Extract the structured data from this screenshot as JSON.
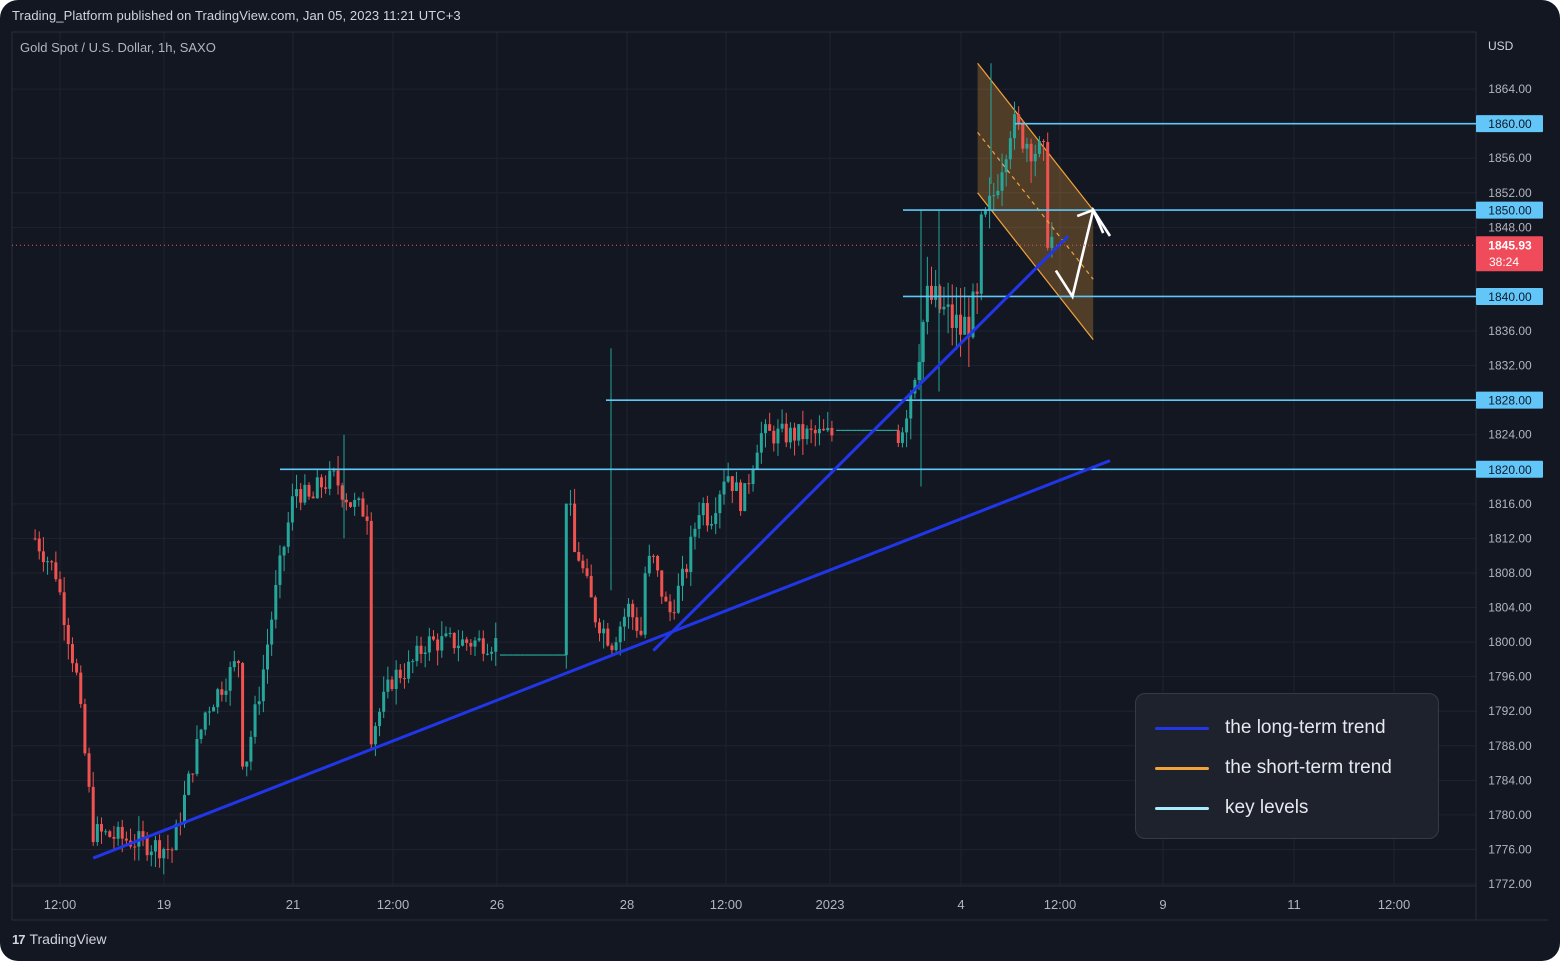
{
  "header": {
    "published": "Trading_Platform published on TradingView.com, Jan 05, 2023 11:21 UTC+3",
    "symbol": "Gold Spot / U.S. Dollar, 1h, SAXO",
    "currency": "USD"
  },
  "footer": {
    "logo_mark": "17",
    "logo_text": "TradingView"
  },
  "colors": {
    "background": "#131722",
    "grid": "#1f2330",
    "up_candle": "#26a69a",
    "down_candle": "#ef5350",
    "long_trend": "#2136e8",
    "short_trend": "#f2a23a",
    "key_level": "#5ec8fa",
    "price_badge": "#ef4b5a",
    "axis_text": "#b2b5be"
  },
  "legend": {
    "items": [
      {
        "label": "the long-term trend",
        "color": "#2136e8"
      },
      {
        "label": "the short-term trend",
        "color": "#f2a23a"
      },
      {
        "label": "key levels",
        "color": "#a8ecff"
      }
    ]
  },
  "chart_data": {
    "type": "candlestick",
    "title": "Gold Spot / U.S. Dollar, 1h, SAXO",
    "ylabel": "USD",
    "ylim": [
      1772,
      1869
    ],
    "y_ticks": [
      "1864.00",
      "1856.00",
      "1852.00",
      "1848.00",
      "1836.00",
      "1832.00",
      "1824.00",
      "1816.00",
      "1812.00",
      "1808.00",
      "1804.00",
      "1800.00",
      "1796.00",
      "1792.00",
      "1788.00",
      "1784.00",
      "1780.00",
      "1776.00",
      "1772.00"
    ],
    "x_ticks": [
      "12:00",
      "19",
      "21",
      "12:00",
      "26",
      "28",
      "12:00",
      "2023",
      "4",
      "12:00",
      "9",
      "11",
      "12:00"
    ],
    "key_levels": [
      1860.0,
      1850.0,
      1840.0,
      1828.0,
      1820.0
    ],
    "key_level_labels": [
      "1860.00",
      "1850.00",
      "1840.00",
      "1828.00",
      "1820.00"
    ],
    "current_price": {
      "value": 1845.93,
      "label": "1845.93",
      "countdown": "38:24"
    },
    "price_path": [
      [
        "Dec 16 06:00",
        1812
      ],
      [
        "Dec 16 11:00",
        1808
      ],
      [
        "Dec 16 16:00",
        1796
      ],
      [
        "Dec 16 20:00",
        1778
      ],
      [
        "Dec 19 02:00",
        1776
      ],
      [
        "Dec 19 06:00",
        1784
      ],
      [
        "Dec 19 10:00",
        1792
      ],
      [
        "Dec 19 14:00",
        1795
      ],
      [
        "Dec 19 18:00",
        1798
      ],
      [
        "Dec 20 00:00",
        1790
      ],
      [
        "Dec 20 04:00",
        1786
      ],
      [
        "Dec 20 08:00",
        1796
      ],
      [
        "Dec 20 12:00",
        1808
      ],
      [
        "Dec 20 16:00",
        1818
      ],
      [
        "Dec 20 20:00",
        1816
      ],
      [
        "Dec 21 02:00",
        1813
      ],
      [
        "Dec 21 06:00",
        1818
      ],
      [
        "Dec 21 10:00",
        1819
      ],
      [
        "Dec 21 14:00",
        1816
      ],
      [
        "Dec 21 18:00",
        1815
      ],
      [
        "Dec 22 00:00",
        1804
      ],
      [
        "Dec 22 04:00",
        1786
      ],
      [
        "Dec 22 08:00",
        1791
      ],
      [
        "Dec 22 12:00",
        1796
      ],
      [
        "Dec 22 16:00",
        1797
      ],
      [
        "Dec 22 20:00",
        1800
      ],
      [
        "Dec 26 01:00",
        1800
      ],
      [
        "Dec 26 06:00",
        1806
      ],
      [
        "Dec 26 10:00",
        1809
      ],
      [
        "Dec 26 14:00",
        1823
      ],
      [
        "Dec 26 18:00",
        1814
      ],
      [
        "Dec 27 00:00",
        1811
      ],
      [
        "Dec 27 04:00",
        1810
      ],
      [
        "Dec 27 08:00",
        1803
      ],
      [
        "Dec 27 12:00",
        1800
      ],
      [
        "Dec 27 16:00",
        1804
      ],
      [
        "Dec 27 20:00",
        1800
      ],
      [
        "Dec 28 02:00",
        1805
      ],
      [
        "Dec 28 06:00",
        1810
      ],
      [
        "Dec 28 10:00",
        1803
      ],
      [
        "Dec 28 14:00",
        1808
      ],
      [
        "Dec 28 18:00",
        1817
      ],
      [
        "Dec 29 00:00",
        1816
      ],
      [
        "Dec 29 04:00",
        1819
      ],
      [
        "Dec 29 08:00",
        1814
      ],
      [
        "Dec 29 12:00",
        1820
      ],
      [
        "Dec 29 16:00",
        1816
      ],
      [
        "Dec 29 20:00",
        1824
      ],
      [
        "Jan 02 00:00",
        1824
      ],
      [
        "Jan 03 01:00",
        1824
      ],
      [
        "Jan 03 04:00",
        1830
      ],
      [
        "Jan 03 08:00",
        1840
      ],
      [
        "Jan 03 12:00",
        1838
      ],
      [
        "Jan 03 16:00",
        1836
      ],
      [
        "Jan 03 20:00",
        1839
      ],
      [
        "Jan 04 00:00",
        1838
      ],
      [
        "Jan 04 04:00",
        1846
      ],
      [
        "Jan 04 08:00",
        1852
      ],
      [
        "Jan 04 12:00",
        1860
      ],
      [
        "Jan 04 16:00",
        1858
      ],
      [
        "Jan 04 20:00",
        1856
      ],
      [
        "Jan 05 00:00",
        1857
      ],
      [
        "Jan 05 04:00",
        1854
      ],
      [
        "Jan 05 08:00",
        1848
      ],
      [
        "Jan 05 11:00",
        1845.93
      ]
    ],
    "annotations": {
      "long_term_trend_lines": [
        {
          "from": [
            "Dec 16 20:00",
            1775
          ],
          "to": [
            "Jan 06 00:00",
            1821
          ]
        },
        {
          "from": [
            "Dec 27 22:00",
            1799
          ],
          "to": [
            "Jan 05 14:00",
            1847
          ]
        }
      ],
      "short_term_channel": {
        "upper": {
          "from": [
            "Jan 04 04:00",
            1867
          ],
          "to": [
            "Jan 05 20:00",
            1850
          ]
        },
        "lower": {
          "from": [
            "Jan 04 04:00",
            1852
          ],
          "to": [
            "Jan 05 20:00",
            1835
          ]
        },
        "midline": {
          "from": [
            "Jan 04 04:00",
            1859
          ],
          "to": [
            "Jan 05 20:00",
            1842
          ]
        }
      },
      "projection_path": [
        [
          "Jan 05 11:00",
          1843
        ],
        [
          "Jan 05 15:00",
          1840
        ],
        [
          "Jan 05 20:00",
          1850
        ],
        [
          "Jan 06 00:00",
          1847
        ]
      ]
    },
    "grid": true,
    "legend_position": "bottom-right"
  }
}
